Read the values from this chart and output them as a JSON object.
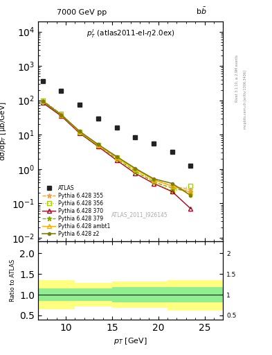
{
  "title_left": "7000 GeV pp",
  "title_right": "b$\\bar{b}$",
  "annotation": "$p_T^l$ (atlas2011-el-$\\eta$2.0ex)",
  "watermark": "ATLAS_2011_I926145",
  "right_label_top": "Rivet 3.1.10, ≥ 2.9M events",
  "right_label_bot": "mcplots.cern.ch [arXiv:1306.3436]",
  "xlabel": "$p_T$ [GeV]",
  "ylabel_main": "dσ/dp$_T$ [μb/GeV]",
  "ylabel_ratio": "Ratio to ATLAS",
  "xlim": [
    7,
    27
  ],
  "ylim_main_log": [
    0.008,
    20000
  ],
  "ylim_ratio": [
    0.4,
    2.3
  ],
  "atlas_x": [
    7.5,
    9.5,
    11.5,
    13.5,
    15.5,
    17.5,
    19.5,
    21.5,
    23.5
  ],
  "atlas_y": [
    360,
    185,
    75,
    30,
    16,
    8.5,
    5.5,
    3.1,
    1.25
  ],
  "pythia_x": [
    7.5,
    9.5,
    11.5,
    13.5,
    15.5,
    17.5,
    19.5,
    21.5,
    23.5
  ],
  "py355_y": [
    100,
    40,
    12,
    5.0,
    2.2,
    1.0,
    0.5,
    0.32,
    0.25
  ],
  "py356_y": [
    100,
    40,
    12,
    5.0,
    2.2,
    0.9,
    0.45,
    0.22,
    0.32
  ],
  "py370_y": [
    85,
    35,
    11,
    4.5,
    1.8,
    0.75,
    0.38,
    0.22,
    0.07
  ],
  "py379_y": [
    92,
    37,
    11.5,
    4.7,
    2.0,
    0.85,
    0.42,
    0.28,
    0.21
  ],
  "pyambt1_y": [
    95,
    38,
    12,
    5.0,
    2.2,
    1.0,
    0.48,
    0.32,
    0.21
  ],
  "pyz2_y": [
    95,
    38,
    12.5,
    5.2,
    2.3,
    1.05,
    0.52,
    0.38,
    0.17
  ],
  "ratio_x_edges": [
    7,
    9,
    11,
    13,
    15,
    17,
    19,
    21,
    23,
    27
  ],
  "ratio_green_lo": [
    0.85,
    0.85,
    0.85,
    0.85,
    0.82,
    0.82,
    0.82,
    0.82,
    0.82
  ],
  "ratio_green_hi": [
    1.15,
    1.15,
    1.15,
    1.15,
    1.18,
    1.18,
    1.18,
    1.18,
    1.18
  ],
  "ratio_yellow_lo": [
    0.65,
    0.65,
    0.72,
    0.72,
    0.68,
    0.68,
    0.68,
    0.64,
    0.64
  ],
  "ratio_yellow_hi": [
    1.35,
    1.35,
    1.28,
    1.28,
    1.32,
    1.32,
    1.32,
    1.36,
    1.36
  ],
  "color_355": "#ffa040",
  "color_356": "#aacc00",
  "color_370": "#aa0020",
  "color_379": "#88aa00",
  "color_ambt1": "#ffaa00",
  "color_z2": "#808000",
  "color_atlas": "#222222",
  "color_green_band": "#90ee90",
  "color_yellow_band": "#ffff80",
  "legend_entries": [
    "ATLAS",
    "Pythia 6.428 355",
    "Pythia 6.428 356",
    "Pythia 6.428 370",
    "Pythia 6.428 379",
    "Pythia 6.428 ambt1",
    "Pythia 6.428 z2"
  ]
}
